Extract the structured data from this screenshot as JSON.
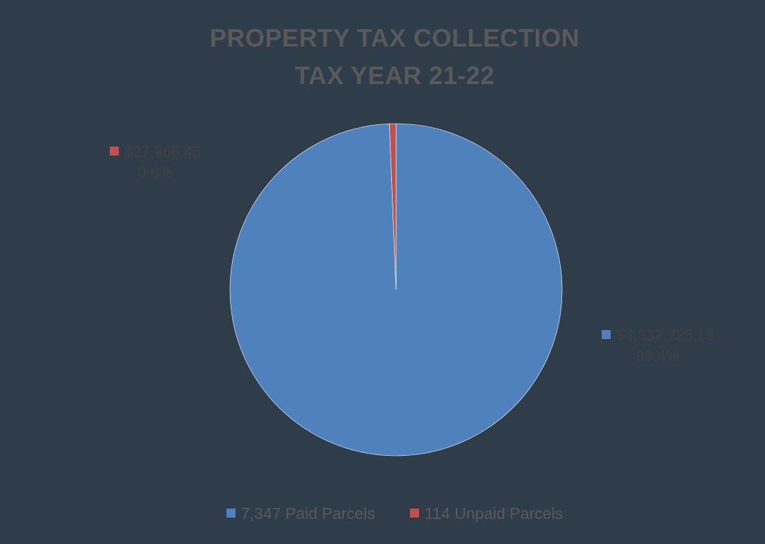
{
  "chart_data": {
    "type": "pie",
    "title": "PROPERTY TAX COLLECTION",
    "subtitle": "TAX YEAR 21-22",
    "categories": [
      "7,347 Paid Parcels",
      "114 Unpaid Parcels"
    ],
    "values": [
      4332725.19,
      27966.45
    ],
    "percents": [
      99.4,
      0.6
    ],
    "value_labels": [
      "$4,332,725.19",
      "$27,966.45"
    ],
    "percent_labels": [
      "99.4%",
      "0.6%"
    ],
    "colors": [
      "#4f81bd",
      "#c0504d"
    ],
    "legend": "bottom"
  }
}
